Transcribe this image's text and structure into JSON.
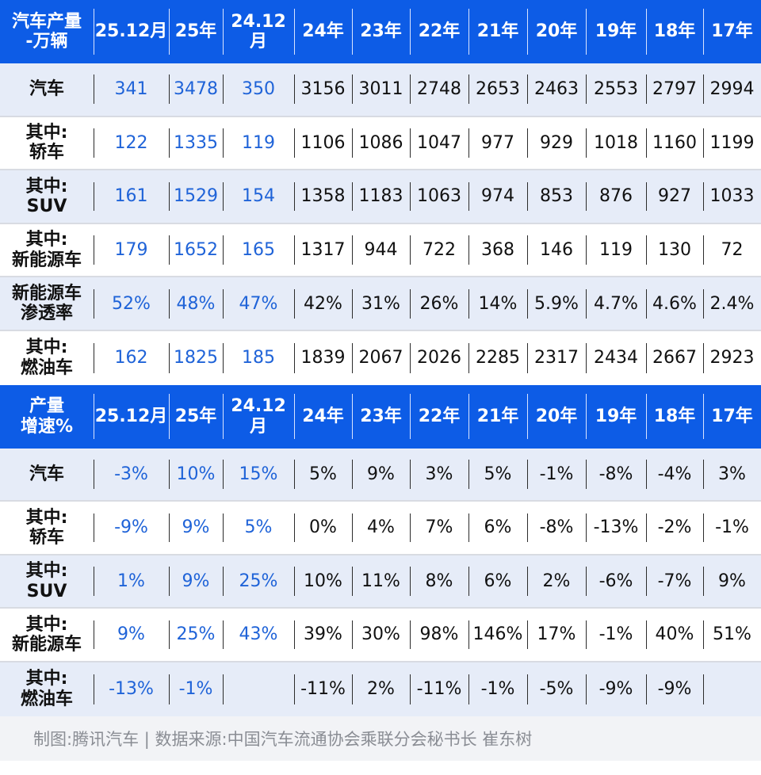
{
  "section1": {
    "header": [
      "汽车产量\n-万辆",
      "25.12月",
      "25年",
      "24.12月",
      "24年",
      "23年",
      "22年",
      "21年",
      "20年",
      "19年",
      "18年",
      "17年"
    ],
    "rows": [
      [
        "汽车",
        "341",
        "3478",
        "350",
        "3156",
        "3011",
        "2748",
        "2653",
        "2463",
        "2553",
        "2797",
        "2994"
      ],
      [
        "其中:\n轿车",
        "122",
        "1335",
        "119",
        "1106",
        "1086",
        "1047",
        "977",
        "929",
        "1018",
        "1160",
        "1199"
      ],
      [
        "其中:\nSUV",
        "161",
        "1529",
        "154",
        "1358",
        "1183",
        "1063",
        "974",
        "853",
        "876",
        "927",
        "1033"
      ],
      [
        "其中:\n新能源车",
        "179",
        "1652",
        "165",
        "1317",
        "944",
        "722",
        "368",
        "146",
        "119",
        "130",
        "72"
      ],
      [
        "新能源车\n渗透率",
        "52%",
        "48%",
        "47%",
        "42%",
        "31%",
        "26%",
        "14%",
        "5.9%",
        "4.7%",
        "4.6%",
        "2.4%"
      ],
      [
        "其中:\n燃油车",
        "162",
        "1825",
        "185",
        "1839",
        "2067",
        "2026",
        "2285",
        "2317",
        "2434",
        "2667",
        "2923"
      ]
    ]
  },
  "section2": {
    "header": [
      "产量\n增速%",
      "25.12月",
      "25年",
      "24.12月",
      "24年",
      "23年",
      "22年",
      "21年",
      "20年",
      "19年",
      "18年",
      "17年"
    ],
    "rows": [
      [
        "汽车",
        "-3%",
        "10%",
        "15%",
        "5%",
        "9%",
        "3%",
        "5%",
        "-1%",
        "-8%",
        "-4%",
        "3%"
      ],
      [
        "其中:\n轿车",
        "-9%",
        "9%",
        "5%",
        "0%",
        "4%",
        "7%",
        "6%",
        "-8%",
        "-13%",
        "-2%",
        "-1%"
      ],
      [
        "其中:\nSUV",
        "1%",
        "9%",
        "25%",
        "10%",
        "11%",
        "8%",
        "6%",
        "2%",
        "-6%",
        "-7%",
        "9%"
      ],
      [
        "其中:\n新能源车",
        "9%",
        "25%",
        "43%",
        "39%",
        "30%",
        "98%",
        "146%",
        "17%",
        "-1%",
        "40%",
        "51%"
      ],
      [
        "其中:\n燃油车",
        "-13%",
        "-1%",
        "",
        "-11%",
        "2%",
        "-11%",
        "-1%",
        "-5%",
        "-9%",
        "-9%",
        ""
      ]
    ]
  },
  "footer": {
    "text": "制图:腾讯汽车 | 数据来源:中国汽车流通协会乘联分会秘书长 崔东树"
  },
  "colors": {
    "header_bg": "#0d5ce6",
    "header_text": "#ffffff",
    "shade_row": "#e6ecf8",
    "highlight_value": "#1f63d8",
    "normal_value": "#111111",
    "footer_bg": "#f2f3f6",
    "footer_text": "#8a8d94"
  }
}
